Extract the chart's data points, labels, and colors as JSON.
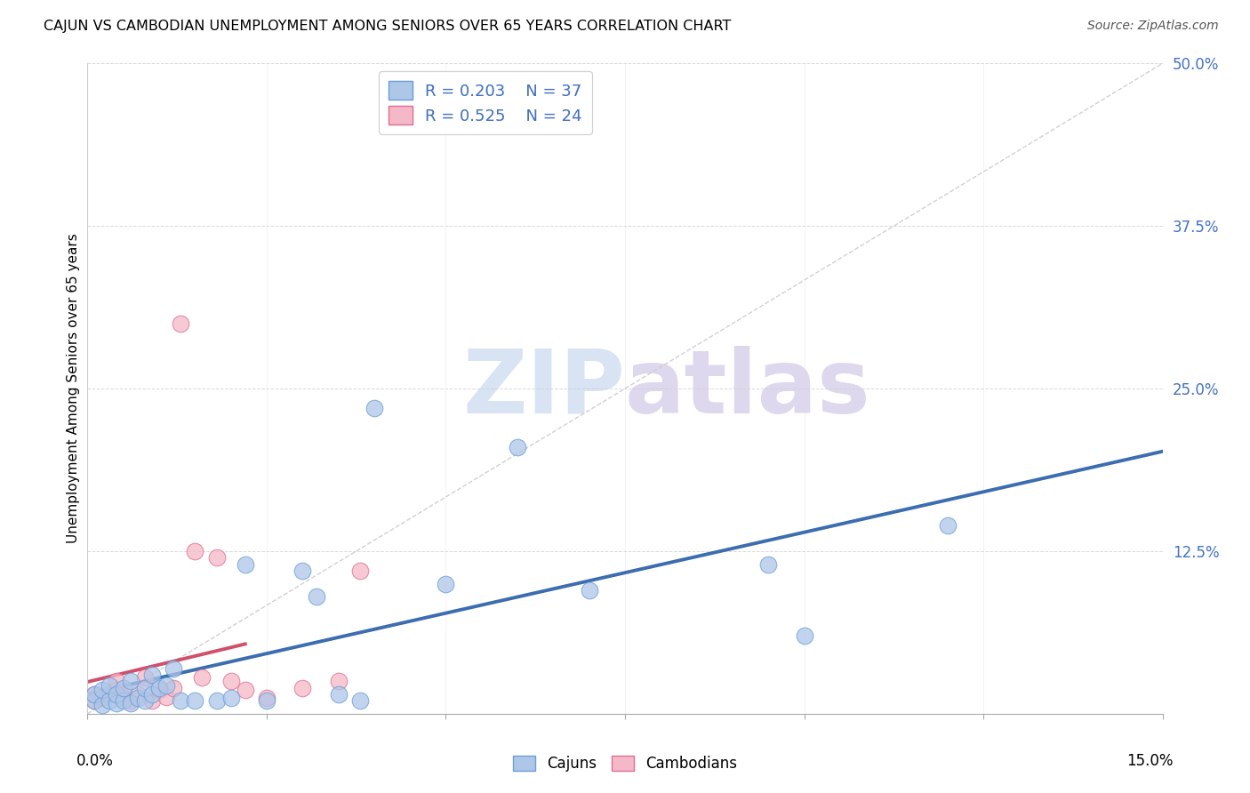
{
  "title": "CAJUN VS CAMBODIAN UNEMPLOYMENT AMONG SENIORS OVER 65 YEARS CORRELATION CHART",
  "source": "Source: ZipAtlas.com",
  "ylabel": "Unemployment Among Seniors over 65 years",
  "xlim": [
    0.0,
    0.15
  ],
  "ylim": [
    0.0,
    0.5
  ],
  "cajun_R": 0.203,
  "cajun_N": 37,
  "cambodian_R": 0.525,
  "cambodian_N": 24,
  "cajun_color": "#aec6e8",
  "cajun_edge_color": "#6a9fd8",
  "cambodian_color": "#f4b8c8",
  "cambodian_edge_color": "#e07090",
  "cajun_line_color": "#3c6db0",
  "cambodian_line_color": "#d0506a",
  "diagonal_color": "#cccccc",
  "watermark_zip_color": "#c8d8ee",
  "watermark_atlas_color": "#d0c8e8",
  "cajun_x": [
    0.001,
    0.001,
    0.002,
    0.002,
    0.003,
    0.003,
    0.004,
    0.004,
    0.005,
    0.005,
    0.006,
    0.006,
    0.007,
    0.008,
    0.008,
    0.009,
    0.009,
    0.01,
    0.011,
    0.012,
    0.013,
    0.015,
    0.018,
    0.02,
    0.022,
    0.025,
    0.03,
    0.032,
    0.035,
    0.038,
    0.04,
    0.05,
    0.06,
    0.07,
    0.095,
    0.1,
    0.12
  ],
  "cajun_y": [
    0.01,
    0.015,
    0.007,
    0.018,
    0.01,
    0.022,
    0.008,
    0.015,
    0.01,
    0.02,
    0.008,
    0.025,
    0.012,
    0.01,
    0.02,
    0.015,
    0.03,
    0.02,
    0.022,
    0.035,
    0.01,
    0.01,
    0.01,
    0.012,
    0.115,
    0.01,
    0.11,
    0.09,
    0.015,
    0.01,
    0.235,
    0.1,
    0.205,
    0.095,
    0.115,
    0.06,
    0.145
  ],
  "cambodian_x": [
    0.001,
    0.001,
    0.002,
    0.003,
    0.004,
    0.004,
    0.005,
    0.006,
    0.007,
    0.008,
    0.009,
    0.01,
    0.011,
    0.012,
    0.013,
    0.015,
    0.016,
    0.018,
    0.02,
    0.022,
    0.025,
    0.03,
    0.035,
    0.038
  ],
  "cambodian_y": [
    0.01,
    0.015,
    0.012,
    0.015,
    0.018,
    0.025,
    0.012,
    0.01,
    0.015,
    0.028,
    0.01,
    0.018,
    0.013,
    0.02,
    0.3,
    0.125,
    0.028,
    0.12,
    0.025,
    0.018,
    0.012,
    0.02,
    0.025,
    0.11
  ]
}
